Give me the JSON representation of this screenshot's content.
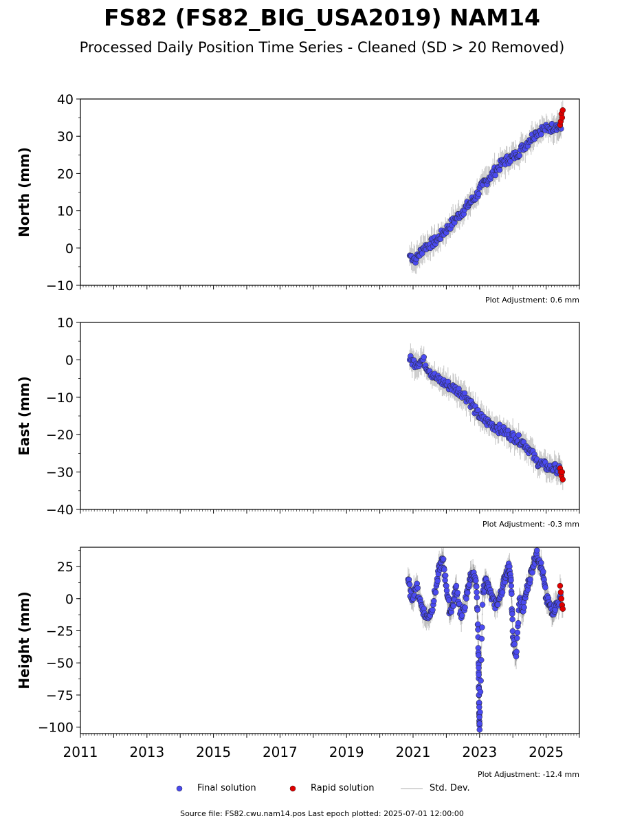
{
  "title": "FS82 (FS82_BIG_USA2019) NAM14",
  "subtitle": "Processed Daily Position Time Series - Cleaned (SD > 20 Removed)",
  "colors": {
    "final": "#4b4bf0",
    "rapid": "#e00000",
    "std_dev": "#c8c8c8"
  },
  "legend": {
    "final": "Final solution",
    "rapid": "Rapid solution",
    "std_dev": "Std. Dev."
  },
  "footer": "Source file: FS82.cwu.nam14.pos  Last epoch plotted: 2025-07-01 12:00:00",
  "chart_data": [
    {
      "type": "scatter",
      "ylabel": "North (mm)",
      "ylim": [
        -10,
        40
      ],
      "yticks": [
        -10,
        0,
        10,
        20,
        30,
        40
      ],
      "xlim": [
        2011,
        2026
      ],
      "adjustment": "Plot Adjustment: 0.6 mm",
      "series": [
        {
          "name": "Final solution",
          "x": [
            2020.9,
            2021.1,
            2021.3,
            2021.5,
            2021.7,
            2021.9,
            2022.1,
            2022.3,
            2022.5,
            2022.7,
            2022.9,
            2023.1,
            2023.3,
            2023.5,
            2023.7,
            2023.9,
            2024.1,
            2024.3,
            2024.5,
            2024.7,
            2024.9,
            2025.1,
            2025.3,
            2025.45
          ],
          "y": [
            -2,
            -3,
            0,
            1,
            2,
            4,
            6,
            8,
            10,
            12,
            14,
            17,
            19,
            21,
            23,
            24,
            25,
            27,
            29,
            31,
            32,
            32,
            33,
            32
          ]
        },
        {
          "name": "Rapid solution",
          "x": [
            2025.42,
            2025.44,
            2025.46,
            2025.48,
            2025.5
          ],
          "y": [
            33,
            34,
            36,
            35,
            37
          ]
        }
      ]
    },
    {
      "type": "scatter",
      "ylabel": "East (mm)",
      "ylim": [
        -40,
        10
      ],
      "yticks": [
        -40,
        -30,
        -20,
        -10,
        0,
        10
      ],
      "xlim": [
        2011,
        2026
      ],
      "adjustment": "Plot Adjustment: -0.3 mm",
      "series": [
        {
          "name": "Final solution",
          "x": [
            2020.9,
            2021.1,
            2021.3,
            2021.5,
            2021.7,
            2021.9,
            2022.1,
            2022.3,
            2022.5,
            2022.7,
            2022.9,
            2023.1,
            2023.3,
            2023.5,
            2023.7,
            2023.9,
            2024.1,
            2024.3,
            2024.5,
            2024.7,
            2024.9,
            2025.1,
            2025.3,
            2025.45
          ],
          "y": [
            0,
            -1,
            0,
            -3,
            -5,
            -6,
            -7,
            -8,
            -9,
            -11,
            -14,
            -16,
            -17,
            -18,
            -19,
            -20,
            -21,
            -22,
            -24,
            -27,
            -28,
            -29,
            -29,
            -30
          ]
        },
        {
          "name": "Rapid solution",
          "x": [
            2025.42,
            2025.44,
            2025.46,
            2025.48,
            2025.5
          ],
          "y": [
            -29,
            -30,
            -31,
            -30,
            -32
          ]
        }
      ]
    },
    {
      "type": "scatter",
      "ylabel": "Height (mm)",
      "ylim": [
        -105,
        40
      ],
      "yticks": [
        -100,
        -75,
        -50,
        -25,
        0,
        25
      ],
      "xlim": [
        2011,
        2026
      ],
      "xticks": [
        2011,
        2013,
        2015,
        2017,
        2019,
        2021,
        2023,
        2025
      ],
      "adjustment": "Plot Adjustment: -12.4 mm",
      "series": [
        {
          "name": "Final solution",
          "x": [
            2020.85,
            2020.95,
            2021.1,
            2021.25,
            2021.4,
            2021.55,
            2021.7,
            2021.8,
            2021.9,
            2022.0,
            2022.1,
            2022.2,
            2022.3,
            2022.45,
            2022.6,
            2022.7,
            2022.8,
            2022.9,
            2022.95,
            2022.97,
            2022.98,
            2022.99,
            2023.0,
            2023.1,
            2023.2,
            2023.3,
            2023.45,
            2023.6,
            2023.7,
            2023.8,
            2023.9,
            2023.95,
            2024.0,
            2024.1,
            2024.2,
            2024.3,
            2024.4,
            2024.5,
            2024.6,
            2024.7,
            2024.8,
            2024.9,
            2025.0,
            2025.1,
            2025.2,
            2025.3,
            2025.45
          ],
          "y": [
            15,
            0,
            10,
            -5,
            -15,
            -10,
            10,
            25,
            30,
            10,
            -10,
            -5,
            10,
            -15,
            0,
            15,
            20,
            10,
            -20,
            -50,
            -70,
            -90,
            -102,
            5,
            15,
            5,
            -5,
            0,
            10,
            20,
            25,
            10,
            -30,
            -45,
            0,
            -10,
            5,
            15,
            25,
            35,
            30,
            20,
            0,
            -5,
            -10,
            -5,
            0
          ]
        },
        {
          "name": "Rapid solution",
          "x": [
            2025.42,
            2025.44,
            2025.46,
            2025.48,
            2025.5
          ],
          "y": [
            10,
            5,
            0,
            -5,
            -8
          ]
        }
      ]
    }
  ]
}
